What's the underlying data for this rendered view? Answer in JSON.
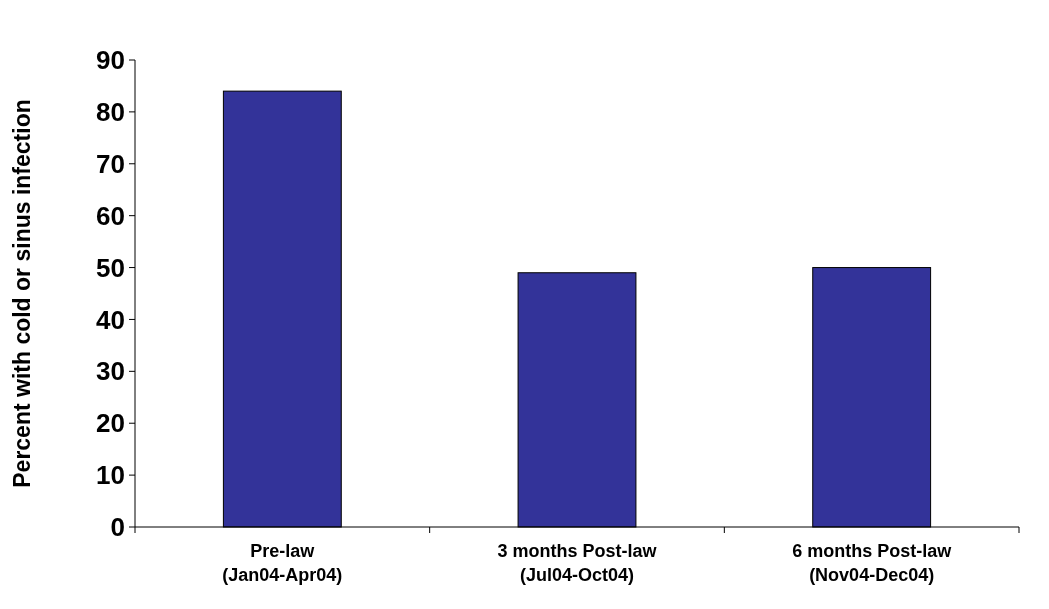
{
  "chart_data": {
    "type": "bar",
    "ylabel": "Percent with cold or sinus infection",
    "categories": [
      "Pre-law\n(Jan04-Apr04)",
      "3 months Post-law\n(Jul04-Oct04)",
      "6 months Post-law\n(Nov04-Dec04)"
    ],
    "values": [
      84,
      49,
      50
    ],
    "color": "#333399",
    "ylim": [
      0,
      90
    ],
    "yticks": [
      0,
      10,
      20,
      30,
      40,
      50,
      60,
      70,
      80,
      90
    ],
    "grid": false
  }
}
